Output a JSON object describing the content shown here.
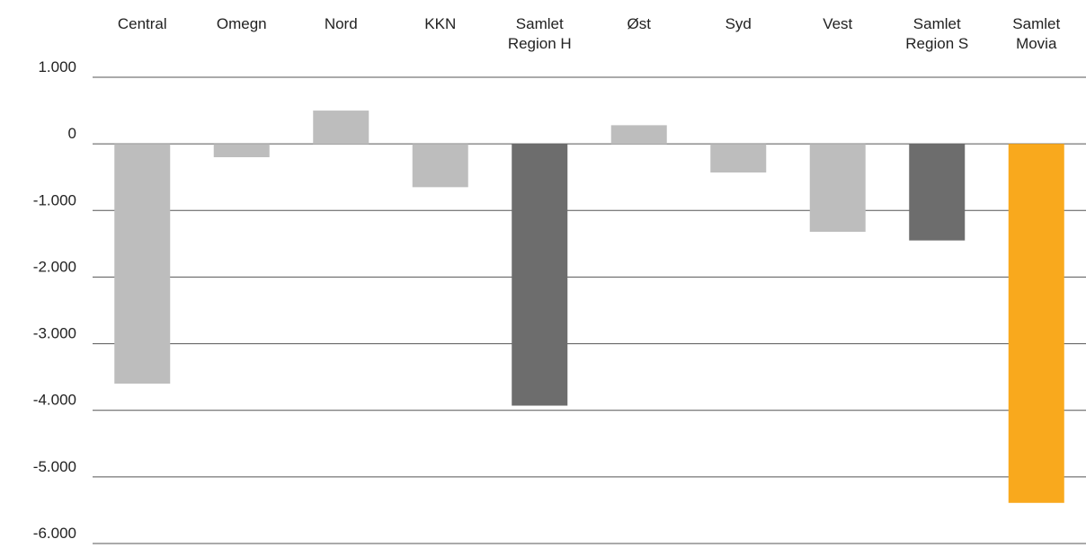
{
  "chart_data": {
    "type": "bar",
    "title": "",
    "xlabel": "",
    "ylabel": "",
    "ylim": [
      -6000,
      1000
    ],
    "yticks": [
      1000,
      0,
      -1000,
      -2000,
      -3000,
      -4000,
      -5000,
      -6000
    ],
    "ytick_labels": [
      "1.000",
      "0",
      "-1.000",
      "-2.000",
      "-3.000",
      "-4.000",
      "-5.000",
      "-6.000"
    ],
    "x_axis_labels_position": "top",
    "grid": true,
    "legend": "none",
    "categories": [
      [
        "Central"
      ],
      [
        "Omegn"
      ],
      [
        "Nord"
      ],
      [
        "KKN"
      ],
      [
        "Samlet",
        "Region H"
      ],
      [
        "Øst"
      ],
      [
        "Syd"
      ],
      [
        "Vest"
      ],
      [
        "Samlet",
        "Region S"
      ],
      [
        "Samlet",
        "Movia"
      ]
    ],
    "values": [
      -3600,
      -200,
      500,
      -650,
      -3930,
      280,
      -430,
      -1320,
      -1450,
      -5390
    ],
    "bar_colors": [
      "#bdbdbd",
      "#bdbdbd",
      "#bdbdbd",
      "#bdbdbd",
      "#6d6d6d",
      "#bdbdbd",
      "#bdbdbd",
      "#bdbdbd",
      "#6d6d6d",
      "#f9a91d"
    ]
  }
}
